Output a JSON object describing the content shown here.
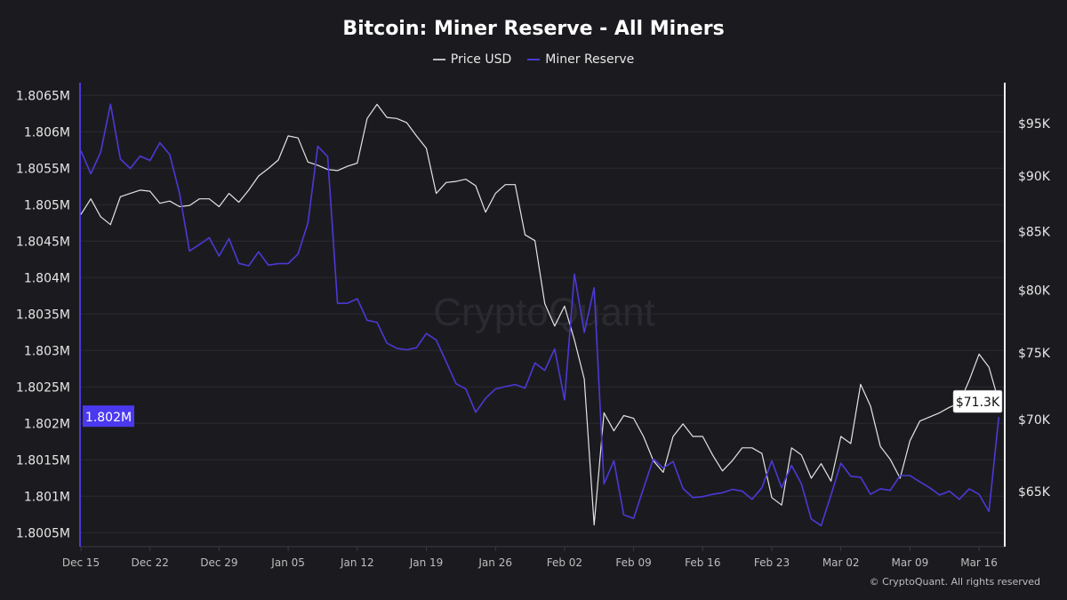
{
  "chart_data": {
    "type": "line",
    "title": "Bitcoin: Miner Reserve - All Miners",
    "legend": [
      "Price USD",
      "Miner Reserve"
    ],
    "legend_placement": "top-center",
    "x_tick_labels": [
      {
        "index": 0,
        "label": "Dec 15"
      },
      {
        "index": 7,
        "label": "Dec 22"
      },
      {
        "index": 14,
        "label": "Dec 29"
      },
      {
        "index": 21,
        "label": "Jan 05"
      },
      {
        "index": 28,
        "label": "Jan 12"
      },
      {
        "index": 35,
        "label": "Jan 19"
      },
      {
        "index": 42,
        "label": "Jan 26"
      },
      {
        "index": 49,
        "label": "Feb 02"
      },
      {
        "index": 56,
        "label": "Feb 09"
      },
      {
        "index": 63,
        "label": "Feb 16"
      },
      {
        "index": 70,
        "label": "Feb 23"
      },
      {
        "index": 77,
        "label": "Mar 02"
      },
      {
        "index": 84,
        "label": "Mar 09"
      },
      {
        "index": 91,
        "label": "Mar 16"
      }
    ],
    "left_axis": {
      "label": "Miner Reserve",
      "range": [
        1800500,
        1806500
      ],
      "ticks": [
        {
          "value": 1806500,
          "label": "1.8065M"
        },
        {
          "value": 1806000,
          "label": "1.806M"
        },
        {
          "value": 1805500,
          "label": "1.8055M"
        },
        {
          "value": 1805000,
          "label": "1.805M"
        },
        {
          "value": 1804500,
          "label": "1.8045M"
        },
        {
          "value": 1804000,
          "label": "1.804M"
        },
        {
          "value": 1803500,
          "label": "1.8035M"
        },
        {
          "value": 1803000,
          "label": "1.803M"
        },
        {
          "value": 1802500,
          "label": "1.8025M"
        },
        {
          "value": 1802000,
          "label": "1.802M"
        },
        {
          "value": 1801500,
          "label": "1.8015M"
        },
        {
          "value": 1801000,
          "label": "1.801M"
        },
        {
          "value": 1800500,
          "label": "1.8005M"
        }
      ],
      "current_label": "1.802M"
    },
    "right_axis": {
      "label": "Price USD",
      "scale": "log",
      "ticks": [
        {
          "value": 95000,
          "label": "$95K"
        },
        {
          "value": 90000,
          "label": "$90K"
        },
        {
          "value": 85000,
          "label": "$85K"
        },
        {
          "value": 80000,
          "label": "$80K"
        },
        {
          "value": 75000,
          "label": "$75K"
        },
        {
          "value": 70000,
          "label": "$70K"
        },
        {
          "value": 65000,
          "label": "$65K"
        }
      ],
      "current_label": "$71.3K"
    },
    "series": [
      {
        "name": "Price USD",
        "axis": "right",
        "color": "#e4e4e4",
        "values": [
          86500,
          87900,
          86300,
          85600,
          88100,
          88400,
          88700,
          88600,
          87500,
          87700,
          87200,
          87300,
          87900,
          87900,
          87200,
          88400,
          87600,
          88700,
          90000,
          90700,
          91500,
          93800,
          93600,
          91300,
          91000,
          90600,
          90500,
          90900,
          91200,
          95500,
          96900,
          95600,
          95500,
          95100,
          93800,
          92600,
          88400,
          89400,
          89500,
          89700,
          89100,
          86700,
          88400,
          89200,
          89200,
          84700,
          84200,
          78900,
          77100,
          78700,
          76000,
          73000,
          62800,
          70500,
          69200,
          70300,
          70100,
          68800,
          67100,
          66300,
          68800,
          69700,
          68800,
          68800,
          67500,
          66400,
          67100,
          68000,
          68000,
          67600,
          64600,
          64100,
          68000,
          67500,
          65900,
          66900,
          65700,
          68800,
          68300,
          72600,
          71000,
          68100,
          67200,
          65900,
          68500,
          69900,
          70200,
          70500,
          70900,
          71200,
          72900,
          74900,
          73900,
          71300
        ]
      },
      {
        "name": "Miner Reserve",
        "axis": "left",
        "color": "#4b39d6",
        "values": [
          1805740,
          1805424,
          1805720,
          1806379,
          1805627,
          1805498,
          1805667,
          1805607,
          1805850,
          1805688,
          1805154,
          1804365,
          1804454,
          1804548,
          1804296,
          1804535,
          1804195,
          1804162,
          1804352,
          1804171,
          1804192,
          1804192,
          1804324,
          1804749,
          1805801,
          1805660,
          1803645,
          1803649,
          1803710,
          1803415,
          1803387,
          1803102,
          1803030,
          1803010,
          1803038,
          1803233,
          1803144,
          1802849,
          1802545,
          1802472,
          1802152,
          1802343,
          1802472,
          1802505,
          1802533,
          1802484,
          1802828,
          1802727,
          1803022,
          1802322,
          1804049,
          1803246,
          1803860,
          1801171,
          1801487,
          1800746,
          1800696,
          1801107,
          1801513,
          1801387,
          1801477,
          1801107,
          1800982,
          1800995,
          1801027,
          1801049,
          1801094,
          1801071,
          1800959,
          1801117,
          1801487,
          1801117,
          1801423,
          1801171,
          1800688,
          1800598,
          1801017,
          1801455,
          1801274,
          1801261,
          1801027,
          1801102,
          1801081,
          1801284,
          1801284,
          1801198,
          1801117,
          1801017,
          1801071,
          1800959,
          1801102,
          1801027,
          1800792,
          1802087
        ]
      }
    ],
    "grid": true
  },
  "watermark": "CryptoQuant",
  "copyright": "© CryptoQuant. All rights reserved"
}
